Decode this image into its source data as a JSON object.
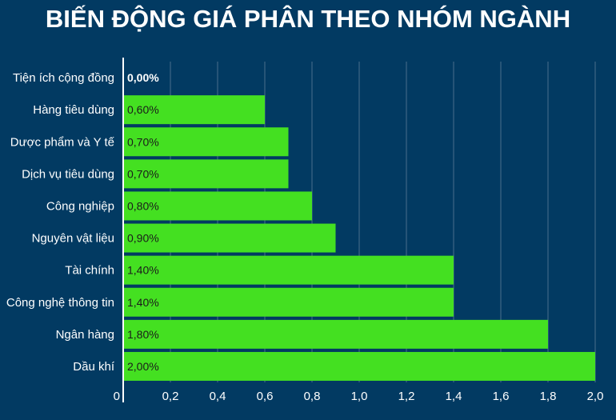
{
  "title": "BIẾN ĐỘNG GIÁ PHÂN THEO NHÓM NGÀNH",
  "colors": {
    "background": "#023a62",
    "bar": "#44e021",
    "grid": "#4a6f8c",
    "axis": "#ffffff",
    "text": "#ffffff",
    "label_on_bar": "#1b1b1b"
  },
  "chart_data": {
    "type": "bar",
    "orientation": "horizontal",
    "categories": [
      "Tiện ích cộng đồng",
      "Hàng tiêu dùng",
      "Dược phẩm và Y tế",
      "Dịch vụ tiêu dùng",
      "Công nghiệp",
      "Nguyên vật liệu",
      "Tài chính",
      "Công nghệ thông tin",
      "Ngân hàng",
      "Dầu khí"
    ],
    "values": [
      0.0,
      0.6,
      0.7,
      0.7,
      0.8,
      0.9,
      1.4,
      1.4,
      1.8,
      2.0
    ],
    "data_labels": [
      "0,00%",
      "0,60%",
      "0,70%",
      "0,70%",
      "0,80%",
      "0,90%",
      "1,40%",
      "1,40%",
      "1,80%",
      "2,00%"
    ],
    "xlim": [
      0,
      2.0
    ],
    "x_ticks": [
      0,
      0.2,
      0.4,
      0.6,
      0.8,
      1.0,
      1.2,
      1.4,
      1.6,
      1.8,
      2.0
    ],
    "x_tick_labels": [
      "0",
      "0,2",
      "0,4",
      "0,6",
      "0,8",
      "1,0",
      "1,2",
      "1,4",
      "1,6",
      "1,8",
      "2,0"
    ],
    "grid": true,
    "legend": "none"
  }
}
